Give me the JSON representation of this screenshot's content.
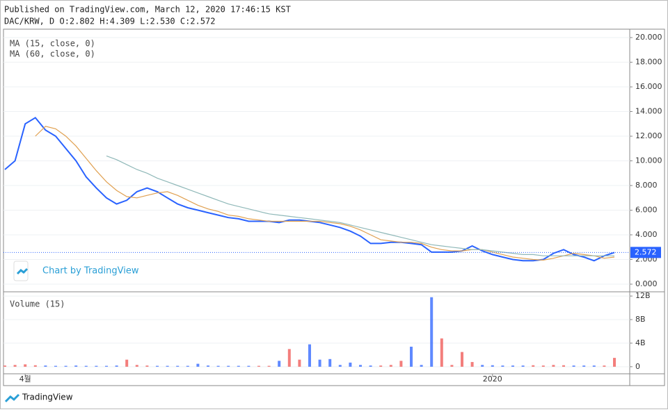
{
  "header": {
    "published": "Published on TradingView.com, March 12, 2020 17:46:15 KST",
    "quote": "DAC/KRW, D O:2.802 H:4.309 L:2.530 C:2.572"
  },
  "watermark": "Chart by TradingView",
  "footer": "TradingView",
  "chart_data": [
    {
      "type": "line",
      "grid": true,
      "ylim": [
        -0.62,
        20.68
      ],
      "yticks": [
        {
          "value": 0,
          "label": "0.000"
        },
        {
          "value": 2,
          "label": "2.000"
        },
        {
          "value": 4,
          "label": "4.000"
        },
        {
          "value": 6,
          "label": "6.000"
        },
        {
          "value": 8,
          "label": "8.000"
        },
        {
          "value": 10,
          "label": "10.000"
        },
        {
          "value": 12,
          "label": "12.000"
        },
        {
          "value": 14,
          "label": "14.000"
        },
        {
          "value": 16,
          "label": "16.000"
        },
        {
          "value": 18,
          "label": "18.000"
        },
        {
          "value": 20,
          "label": "20.000"
        }
      ],
      "last": {
        "value": 2.572,
        "label": "2.572",
        "color": "#2962ff"
      },
      "series": [
        {
          "color": "#2962ff",
          "values": [
            9.3,
            10,
            13,
            13.5,
            12.5,
            12,
            11,
            10,
            8.7,
            7.8,
            7,
            6.5,
            6.8,
            7.5,
            7.8,
            7.5,
            7,
            6.5,
            6.2,
            6,
            5.8,
            5.6,
            5.4,
            5.3,
            5.1,
            5.1,
            5.1,
            5,
            5.2,
            5.2,
            5.1,
            5,
            4.8,
            4.6,
            4.3,
            3.9,
            3.3,
            3.3,
            3.4,
            3.4,
            3.3,
            3.2,
            2.6,
            2.6,
            2.6,
            2.7,
            3.1,
            2.7,
            2.4,
            2.2,
            2,
            1.9,
            1.9,
            2,
            2.5,
            2.8,
            2.4,
            2.2,
            1.9,
            2.3,
            2.572
          ]
        },
        {
          "name": "MA (15, close, 0)",
          "color": "#e0a050",
          "values": [
            null,
            null,
            null,
            12,
            12.8,
            12.6,
            12,
            11.2,
            10.2,
            9.2,
            8.3,
            7.6,
            7.1,
            7,
            7.2,
            7.4,
            7.5,
            7.2,
            6.8,
            6.4,
            6.1,
            5.9,
            5.6,
            5.5,
            5.3,
            5.2,
            5.1,
            5.1,
            5.1,
            5.1,
            5.1,
            5.1,
            5,
            4.9,
            4.7,
            4.4,
            4,
            3.6,
            3.5,
            3.4,
            3.4,
            3.3,
            3,
            2.8,
            2.7,
            2.7,
            2.8,
            2.8,
            2.6,
            2.4,
            2.2,
            2.1,
            2,
            1.95,
            2.1,
            2.3,
            2.5,
            2.4,
            2.3,
            2.1,
            2.2
          ]
        },
        {
          "name": "MA (60, close, 0)",
          "color": "#8fb8b8",
          "values": [
            null,
            null,
            null,
            null,
            null,
            null,
            null,
            null,
            null,
            null,
            10.4,
            10.1,
            9.7,
            9.3,
            9,
            8.6,
            8.3,
            8,
            7.7,
            7.4,
            7.1,
            6.8,
            6.5,
            6.3,
            6.1,
            5.9,
            5.7,
            5.6,
            5.5,
            5.4,
            5.3,
            5.2,
            5.1,
            5,
            4.8,
            4.6,
            4.4,
            4.2,
            4,
            3.8,
            3.6,
            3.4,
            3.2,
            3.1,
            3,
            2.9,
            2.8,
            2.8,
            2.7,
            2.6,
            2.5,
            2.4,
            2.4,
            2.3,
            2.3,
            2.3,
            2.3,
            2.3,
            2.3,
            2.3,
            2.3
          ]
        }
      ]
    },
    {
      "type": "bar",
      "title": "Volume (15)",
      "grid": true,
      "ylim": [
        -1200000000,
        12720000000
      ],
      "yticks": [
        0,
        {
          "value": 4000000000,
          "label": "4B"
        },
        {
          "value": 8000000000,
          "label": "8B"
        },
        {
          "value": 12000000000,
          "label": "12B"
        }
      ],
      "up_color": "#ef5350",
      "down_color": "#2962ff",
      "categories": [
        null,
        null,
        "4월",
        null,
        null,
        null,
        null,
        null,
        null,
        null,
        null,
        null,
        null,
        null,
        null,
        null,
        null,
        null,
        null,
        null,
        null,
        null,
        null,
        null,
        null,
        null,
        null,
        null,
        null,
        null,
        null,
        null,
        null,
        null,
        null,
        null,
        null,
        null,
        null,
        null,
        null,
        null,
        null,
        null,
        null,
        null,
        null,
        null,
        "2020",
        null,
        null,
        null,
        null,
        null,
        null,
        null,
        null,
        null,
        null,
        null,
        null
      ],
      "values": [
        200000000,
        300000000,
        400000000,
        250000000,
        200000000,
        150000000,
        150000000,
        200000000,
        150000000,
        150000000,
        150000000,
        200000000,
        1200000000,
        300000000,
        200000000,
        150000000,
        150000000,
        150000000,
        150000000,
        500000000,
        200000000,
        150000000,
        150000000,
        150000000,
        150000000,
        150000000,
        150000000,
        1000000000,
        3000000000,
        1200000000,
        3800000000,
        1200000000,
        1300000000,
        300000000,
        700000000,
        300000000,
        200000000,
        200000000,
        300000000,
        1000000000,
        3400000000,
        300000000,
        11800000000,
        4800000000,
        300000000,
        2500000000,
        800000000,
        300000000,
        250000000,
        200000000,
        200000000,
        200000000,
        250000000,
        200000000,
        300000000,
        250000000,
        200000000,
        200000000,
        200000000,
        200000000,
        1500000000
      ]
    }
  ]
}
